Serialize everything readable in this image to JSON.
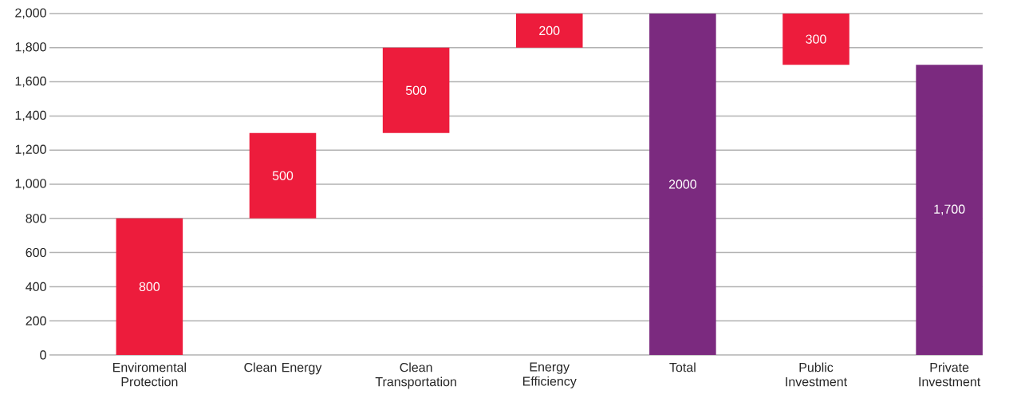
{
  "chart_data": {
    "type": "bar",
    "categories": [
      "Enviromental Protection",
      "Clean Energy",
      "Clean Transportation",
      "Energy Efficiency",
      "Total",
      "Public Investment",
      "Private Investment"
    ],
    "values": [
      800,
      500,
      500,
      200,
      2000,
      300,
      1700
    ],
    "base": [
      0,
      800,
      1300,
      1800,
      0,
      1700,
      0
    ],
    "colors": [
      "#ed1c3c",
      "#ed1c3c",
      "#ed1c3c",
      "#ed1c3c",
      "#7b2a7f",
      "#ed1c3c",
      "#7b2a7f"
    ],
    "value_labels": [
      "800",
      "500",
      "500",
      "200",
      "2000",
      "300",
      "1,700"
    ],
    "ylim": [
      0,
      2000
    ],
    "yticks": [
      0,
      200,
      400,
      600,
      800,
      {
        "value": 1000,
        "label": "1,000"
      },
      {
        "value": 1200,
        "label": "1,200"
      },
      {
        "value": 1400,
        "label": "1,400"
      },
      {
        "value": 1600,
        "label": "1,600"
      },
      {
        "value": 1800,
        "label": "1,800"
      },
      {
        "value": 2000,
        "label": "2,000"
      }
    ],
    "grid": "y"
  }
}
